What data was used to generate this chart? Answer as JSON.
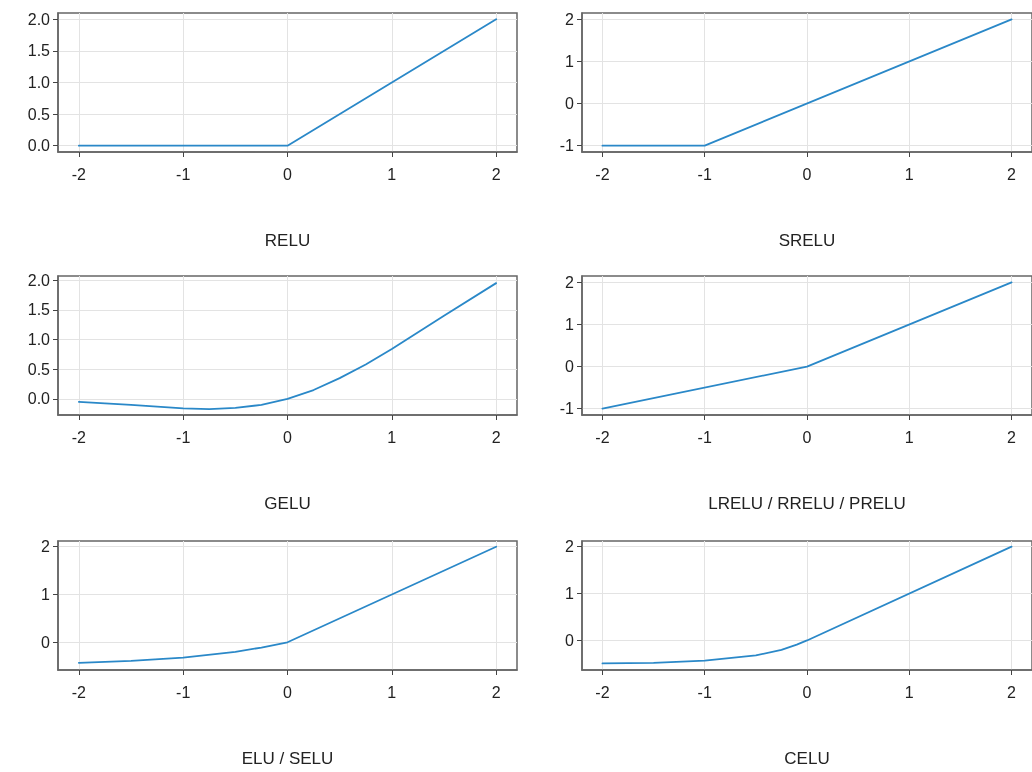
{
  "chart_data": [
    {
      "type": "line",
      "xlabel": "RELU",
      "color": "#2a88c8",
      "grid": true,
      "marker": "none",
      "line_style": "solid",
      "x": [
        -2,
        0,
        2
      ],
      "values": [
        0,
        0,
        2
      ],
      "xlim": [
        -2.2,
        2.2
      ],
      "xticks": [
        -2,
        -1,
        0,
        1,
        2
      ],
      "ylim": [
        -0.1,
        2.1
      ],
      "yticks": [
        {
          "value": 0,
          "label": "0.0"
        },
        {
          "value": 0.5,
          "label": "0.5"
        },
        {
          "value": 1,
          "label": "1.0"
        },
        {
          "value": 1.5,
          "label": "1.5"
        },
        {
          "value": 2,
          "label": "2.0"
        }
      ]
    },
    {
      "type": "line",
      "xlabel": "SRELU",
      "color": "#2a88c8",
      "grid": true,
      "marker": "none",
      "line_style": "solid",
      "x": [
        -2,
        -1,
        2
      ],
      "values": [
        -1,
        -1,
        2
      ],
      "xlim": [
        -2.2,
        2.2
      ],
      "xticks": [
        -2,
        -1,
        0,
        1,
        2
      ],
      "ylim": [
        -1.15,
        2.15
      ],
      "yticks": [
        -1,
        0,
        1,
        2
      ]
    },
    {
      "type": "line",
      "xlabel": "GELU",
      "color": "#2a88c8",
      "grid": true,
      "marker": "none",
      "line_style": "solid",
      "x": [
        -2,
        -1.5,
        -1,
        -0.75,
        -0.5,
        -0.25,
        0,
        0.25,
        0.5,
        0.75,
        1,
        1.5,
        2
      ],
      "values": [
        -0.05,
        -0.1,
        -0.16,
        -0.17,
        -0.15,
        -0.1,
        0,
        0.15,
        0.35,
        0.58,
        0.84,
        1.4,
        1.95
      ],
      "xlim": [
        -2.2,
        2.2
      ],
      "xticks": [
        -2,
        -1,
        0,
        1,
        2
      ],
      "ylim": [
        -0.27,
        2.07
      ],
      "yticks": [
        {
          "value": 0,
          "label": "0.0"
        },
        {
          "value": 0.5,
          "label": "0.5"
        },
        {
          "value": 1,
          "label": "1.0"
        },
        {
          "value": 1.5,
          "label": "1.5"
        },
        {
          "value": 2,
          "label": "2.0"
        }
      ]
    },
    {
      "type": "line",
      "xlabel": "LRELU / RRELU / PRELU",
      "color": "#2a88c8",
      "grid": true,
      "marker": "none",
      "line_style": "solid",
      "x": [
        -2,
        0,
        2
      ],
      "values": [
        -1,
        0,
        2
      ],
      "xlim": [
        -2.2,
        2.2
      ],
      "xticks": [
        -2,
        -1,
        0,
        1,
        2
      ],
      "ylim": [
        -1.15,
        2.15
      ],
      "yticks": [
        -1,
        0,
        1,
        2
      ]
    },
    {
      "type": "line",
      "xlabel": "ELU / SELU",
      "color": "#2a88c8",
      "grid": true,
      "marker": "none",
      "line_style": "solid",
      "x": [
        -2,
        -1.5,
        -1,
        -0.5,
        -0.25,
        0,
        2
      ],
      "values": [
        -0.43,
        -0.39,
        -0.32,
        -0.2,
        -0.11,
        0,
        2
      ],
      "xlim": [
        -2.2,
        2.2
      ],
      "xticks": [
        -2,
        -1,
        0,
        1,
        2
      ],
      "ylim": [
        -0.58,
        2.12
      ],
      "yticks": [
        0,
        1,
        2
      ]
    },
    {
      "type": "line",
      "xlabel": "CELU",
      "color": "#2a88c8",
      "grid": true,
      "marker": "none",
      "line_style": "solid",
      "x": [
        -2,
        -1.5,
        -1,
        -0.5,
        -0.25,
        -0.1,
        0,
        2
      ],
      "values": [
        -0.49,
        -0.48,
        -0.43,
        -0.32,
        -0.2,
        -0.09,
        0,
        2
      ],
      "xlim": [
        -2.2,
        2.2
      ],
      "xticks": [
        -2,
        -1,
        0,
        1,
        2
      ],
      "ylim": [
        -0.63,
        2.12
      ],
      "yticks": [
        0,
        1,
        2
      ]
    }
  ]
}
